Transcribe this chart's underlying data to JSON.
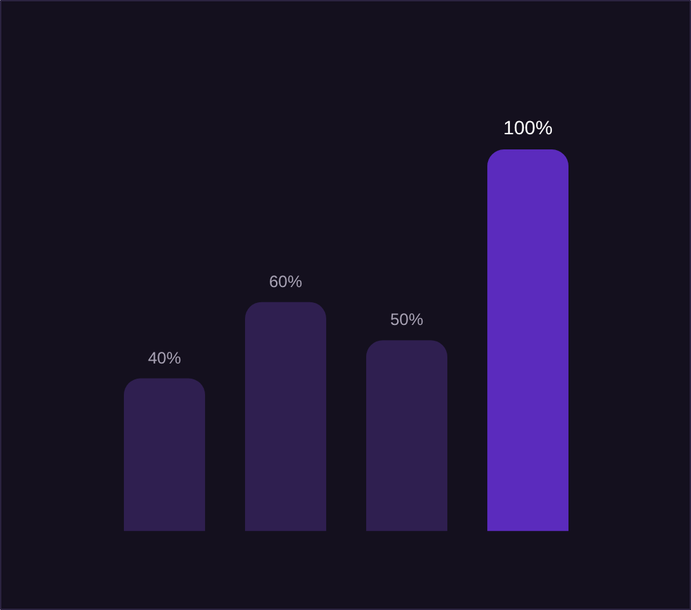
{
  "chart_data": {
    "type": "bar",
    "categories": [
      null,
      null,
      null,
      null
    ],
    "values": [
      40,
      60,
      50,
      100
    ],
    "colors": [
      "#2f1f50",
      "#2f1f50",
      "#2f1f50",
      "#5b2bbd"
    ],
    "value_labels": [
      "40%",
      "60%",
      "50%",
      "100%"
    ],
    "tick_labels": false
  }
}
